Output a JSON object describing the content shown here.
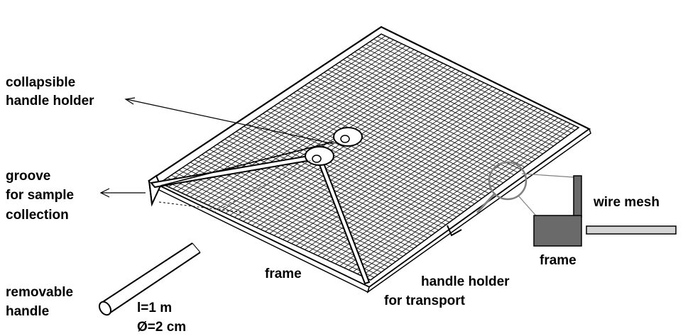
{
  "labels": {
    "collapsible_handle_holder": [
      "collapsible",
      "handle holder"
    ],
    "groove": [
      "groove",
      "for sample",
      "collection"
    ],
    "removable_handle": [
      "removable",
      "handle"
    ],
    "length": "l=1 m",
    "diameter": "Ø=2 cm",
    "frame_center": "frame",
    "handle_holder_transport": [
      "handle holder",
      "for transport"
    ],
    "wire_mesh": "wire mesh",
    "frame_detail": "frame"
  },
  "colors": {
    "line": "#000000",
    "mesh": "#1a1a1a",
    "detail_frame": "#6a6a6a",
    "detail_mesh": "#d4d4d4",
    "magnifier": "#808080"
  }
}
